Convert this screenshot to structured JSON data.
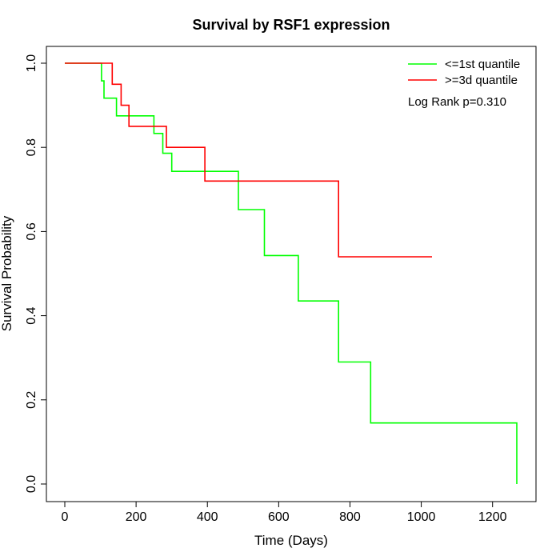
{
  "chart_data": {
    "type": "line",
    "title": "Survival by RSF1 expression",
    "xlabel": "Time (Days)",
    "ylabel": "Survival Probability",
    "xlim": [
      0,
      1270
    ],
    "ylim": [
      0,
      1
    ],
    "xticks": [
      0,
      200,
      400,
      600,
      800,
      1000,
      1200
    ],
    "yticks": [
      0.0,
      0.2,
      0.4,
      0.6,
      0.8,
      1.0
    ],
    "ytick_labels": [
      "0.0",
      "0.2",
      "0.4",
      "0.6",
      "0.8",
      "1.0"
    ],
    "grid": false,
    "legend_position": "top-right",
    "annotation": "Log Rank p=0.310",
    "series": [
      {
        "name": "<=1st quantile",
        "color": "#00ff00",
        "step": true,
        "points": [
          [
            0,
            1.0
          ],
          [
            103,
            1.0
          ],
          [
            103,
            0.958
          ],
          [
            110,
            0.958
          ],
          [
            110,
            0.917
          ],
          [
            145,
            0.917
          ],
          [
            145,
            0.875
          ],
          [
            250,
            0.875
          ],
          [
            250,
            0.833
          ],
          [
            275,
            0.833
          ],
          [
            275,
            0.786
          ],
          [
            300,
            0.786
          ],
          [
            300,
            0.743
          ],
          [
            487,
            0.743
          ],
          [
            487,
            0.652
          ],
          [
            560,
            0.652
          ],
          [
            560,
            0.543
          ],
          [
            655,
            0.543
          ],
          [
            655,
            0.435
          ],
          [
            768,
            0.435
          ],
          [
            768,
            0.29
          ],
          [
            858,
            0.29
          ],
          [
            858,
            0.145
          ],
          [
            1268,
            0.145
          ],
          [
            1268,
            0.0
          ]
        ]
      },
      {
        "name": ">=3d quantile",
        "color": "#ff0000",
        "step": true,
        "points": [
          [
            0,
            1.0
          ],
          [
            133,
            1.0
          ],
          [
            133,
            0.95
          ],
          [
            158,
            0.95
          ],
          [
            158,
            0.9
          ],
          [
            180,
            0.9
          ],
          [
            180,
            0.85
          ],
          [
            285,
            0.85
          ],
          [
            285,
            0.8
          ],
          [
            393,
            0.8
          ],
          [
            393,
            0.72
          ],
          [
            768,
            0.72
          ],
          [
            768,
            0.54
          ],
          [
            1030,
            0.54
          ]
        ]
      }
    ]
  }
}
